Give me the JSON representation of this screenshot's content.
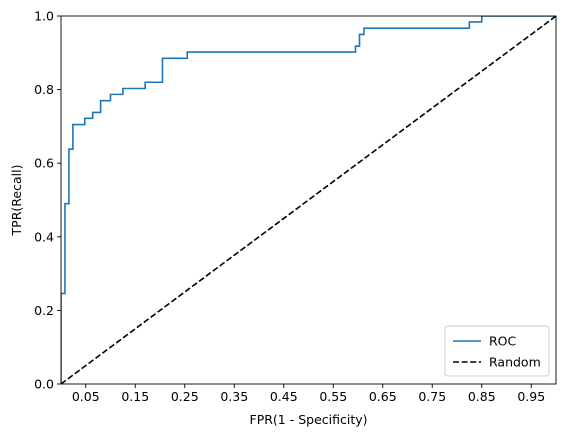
{
  "chart_data": {
    "type": "line",
    "title": "",
    "xlabel": "FPR(1 - Specificity)",
    "ylabel": "TPR(Recall)",
    "xlim": [
      0,
      1
    ],
    "ylim": [
      0,
      1
    ],
    "x_ticks": [
      0.05,
      0.15,
      0.25,
      0.35,
      0.45,
      0.55,
      0.65,
      0.75,
      0.85,
      0.95
    ],
    "x_tick_labels": [
      "0.05",
      "0.15",
      "0.25",
      "0.35",
      "0.45",
      "0.55",
      "0.65",
      "0.75",
      "0.85",
      "0.95"
    ],
    "y_ticks": [
      0.0,
      0.2,
      0.4,
      0.6,
      0.8,
      1.0
    ],
    "y_tick_labels": [
      "0.0",
      "0.2",
      "0.4",
      "0.6",
      "0.8",
      "1.0"
    ],
    "grid": false,
    "legend_position": "lower-right",
    "series": [
      {
        "name": "ROC",
        "color": "#1f77b4",
        "style": "solid",
        "x": [
          0.0,
          0.0,
          0.008,
          0.008,
          0.016,
          0.016,
          0.024,
          0.024,
          0.032,
          0.032,
          0.048,
          0.048,
          0.064,
          0.064,
          0.08,
          0.08,
          0.1,
          0.1,
          0.125,
          0.125,
          0.17,
          0.17,
          0.205,
          0.205,
          0.255,
          0.255,
          0.595,
          0.595,
          0.603,
          0.603,
          0.612,
          0.612,
          0.62,
          0.62,
          0.825,
          0.825,
          0.85,
          0.85,
          1.0
        ],
        "y": [
          0.0,
          0.246,
          0.246,
          0.49,
          0.49,
          0.638,
          0.638,
          0.705,
          0.705,
          0.705,
          0.705,
          0.722,
          0.722,
          0.738,
          0.738,
          0.77,
          0.77,
          0.787,
          0.787,
          0.803,
          0.803,
          0.82,
          0.82,
          0.885,
          0.885,
          0.902,
          0.902,
          0.918,
          0.918,
          0.95,
          0.95,
          0.967,
          0.967,
          0.967,
          0.967,
          0.984,
          0.984,
          1.0,
          1.0
        ]
      },
      {
        "name": "Random",
        "color": "#000000",
        "style": "dashed",
        "x": [
          0,
          1
        ],
        "y": [
          0,
          1
        ]
      }
    ]
  }
}
